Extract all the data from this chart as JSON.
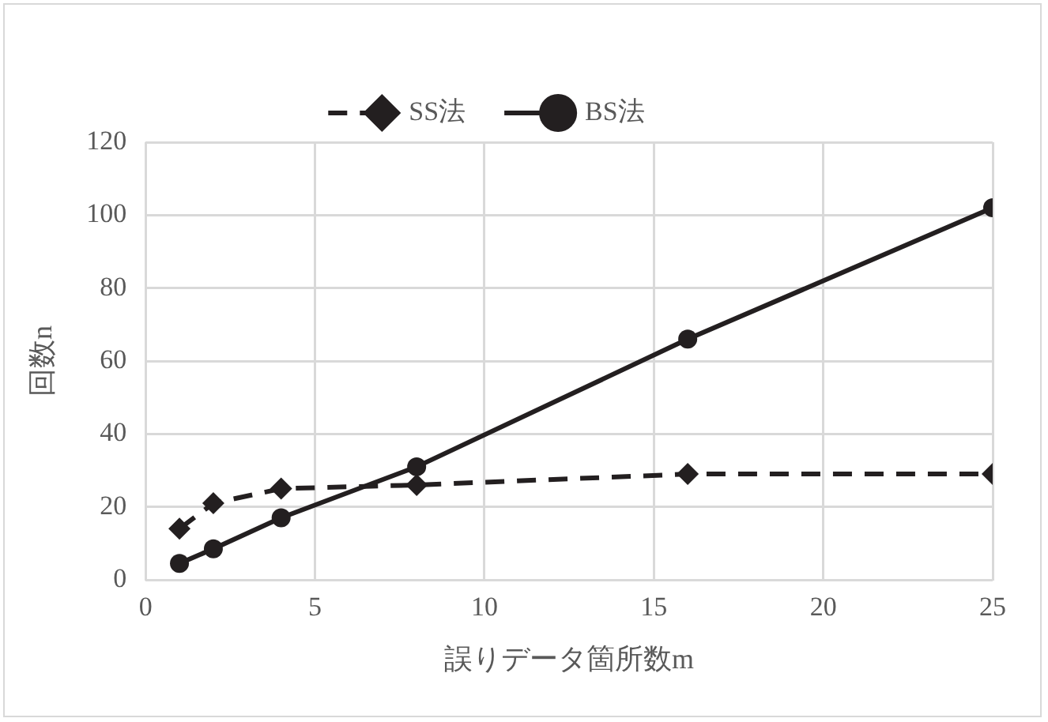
{
  "chart_data": {
    "type": "line",
    "xlabel": "誤りデータ箇所数m",
    "ylabel": "回数n",
    "xlim": [
      0,
      25
    ],
    "xticks": [
      0,
      5,
      10,
      15,
      20,
      25
    ],
    "ylim": [
      0,
      120
    ],
    "yticks": [
      0,
      20,
      40,
      60,
      80,
      100,
      120
    ],
    "grid": true,
    "legend": "top",
    "series": [
      {
        "name": "SS法",
        "color": "#231f20",
        "marker": "diamond",
        "line_style": "dashed",
        "x": [
          1,
          2,
          4,
          8,
          16,
          25
        ],
        "values": [
          14,
          21,
          25,
          26,
          29,
          29
        ]
      },
      {
        "name": "BS法",
        "color": "#231f20",
        "marker": "circle",
        "line_style": "solid",
        "x": [
          1,
          2,
          4,
          8,
          16,
          25
        ],
        "values": [
          4.5,
          8.5,
          17,
          31,
          66,
          102
        ]
      }
    ]
  }
}
